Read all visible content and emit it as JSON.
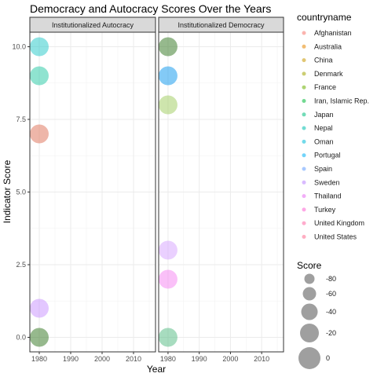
{
  "chart_data": {
    "type": "scatter",
    "title": "Democracy and Autocracy Scores Over the Years",
    "xlabel": "Year",
    "ylabel": "Indicator Score",
    "xlim": [
      1977,
      2017
    ],
    "ylim": [
      -0.5,
      10.5
    ],
    "x_ticks": [
      1980,
      1990,
      2000,
      2010
    ],
    "y_ticks": [
      0.0,
      2.5,
      5.0,
      7.5,
      10.0
    ],
    "y_tick_labels": [
      "0.0",
      "2.5",
      "5.0",
      "7.5",
      "10.0"
    ],
    "grid": true,
    "facets": [
      "Institutionalized Autocracy",
      "Institutionalized Democracy"
    ],
    "legend_color_title": "countryname",
    "countries": [
      {
        "name": "Afghanistan",
        "color": "#F8766D"
      },
      {
        "name": "Australia",
        "color": "#E58700"
      },
      {
        "name": "China",
        "color": "#C99800"
      },
      {
        "name": "Denmark",
        "color": "#A3A500"
      },
      {
        "name": "France",
        "color": "#6BB100"
      },
      {
        "name": "Iran, Islamic Rep.",
        "color": "#00BA38"
      },
      {
        "name": "Japan",
        "color": "#00BF7D"
      },
      {
        "name": "Nepal",
        "color": "#00C0AF"
      },
      {
        "name": "Oman",
        "color": "#00BCD8"
      },
      {
        "name": "Portugal",
        "color": "#00B0F6"
      },
      {
        "name": "Spain",
        "color": "#619CFF"
      },
      {
        "name": "Sweden",
        "color": "#B983FF"
      },
      {
        "name": "Thailand",
        "color": "#E76BF3"
      },
      {
        "name": "Turkey",
        "color": "#FD61D1"
      },
      {
        "name": "United Kingdom",
        "color": "#FF67A4"
      },
      {
        "name": "United States",
        "color": "#FF6C90"
      }
    ],
    "legend_size_title": "Score",
    "size_legend": [
      {
        "label": "-80",
        "value": -80
      },
      {
        "label": "-60",
        "value": -60
      },
      {
        "label": "-40",
        "value": -40
      },
      {
        "label": "-20",
        "value": -20
      },
      {
        "label": "0",
        "value": 0
      }
    ],
    "points": [
      {
        "facet": 0,
        "x": 1980,
        "y": 10,
        "color": "#33CCCC"
      },
      {
        "facet": 0,
        "x": 1980,
        "y": 9,
        "color": "#33CCAA"
      },
      {
        "facet": 0,
        "x": 1980,
        "y": 7,
        "color": "#E07A62"
      },
      {
        "facet": 0,
        "x": 1980,
        "y": 1,
        "color": "#CC99FF"
      },
      {
        "facet": 0,
        "x": 1980,
        "y": 0,
        "color": "#3F7F2F"
      },
      {
        "facet": 1,
        "x": 1980,
        "y": 10,
        "color": "#3F7F2F"
      },
      {
        "facet": 1,
        "x": 1980,
        "y": 9,
        "color": "#1E9FEF"
      },
      {
        "facet": 1,
        "x": 1980,
        "y": 8,
        "color": "#A6D06A"
      },
      {
        "facet": 1,
        "x": 1980,
        "y": 3,
        "color": "#D9AAFF"
      },
      {
        "facet": 1,
        "x": 1980,
        "y": 2,
        "color": "#F58CF2"
      },
      {
        "facet": 1,
        "x": 1980,
        "y": 0,
        "color": "#5FBF8A"
      }
    ]
  }
}
